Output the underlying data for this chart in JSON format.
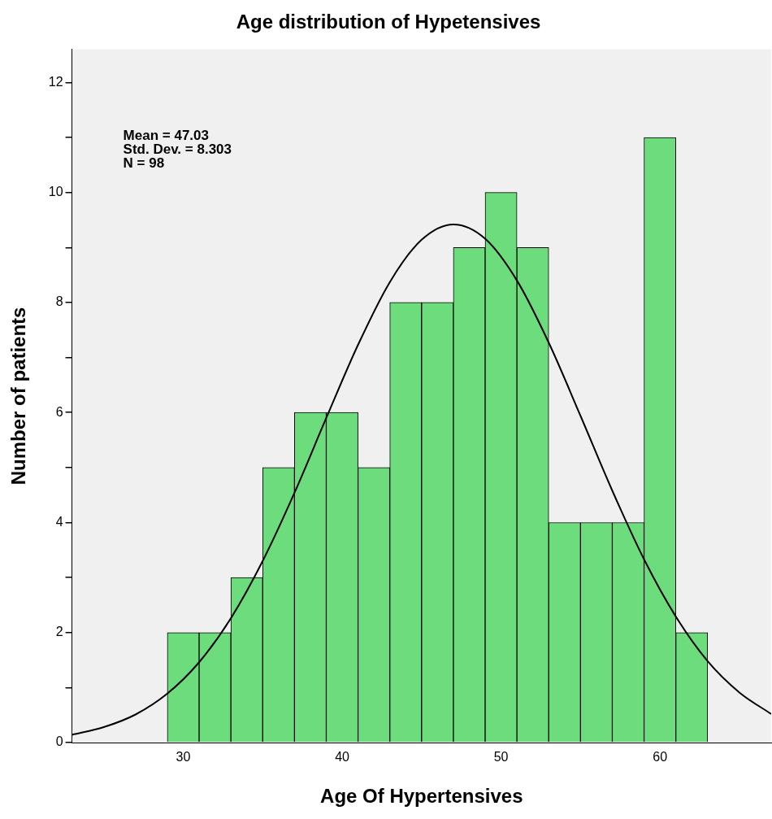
{
  "chart_data": {
    "type": "histogram",
    "title": "Age distribution of Hypetensives",
    "xlabel": "Age Of Hypertensives",
    "ylabel": "Number of patients",
    "xlim": [
      23,
      67
    ],
    "xticks": [
      30,
      40,
      50,
      60
    ],
    "ylim": [
      0,
      12.6
    ],
    "yticks": [
      0,
      {
        "value": 1,
        "label": null
      },
      2,
      {
        "value": 3,
        "label": null
      },
      4,
      {
        "value": 5,
        "label": null
      },
      6,
      {
        "value": 7,
        "label": null
      },
      8,
      {
        "value": 9,
        "label": null
      },
      10,
      {
        "value": 11,
        "label": null
      },
      12
    ],
    "grid": false,
    "legend": false,
    "annotations": [
      "Mean = 47.03",
      "Std. Dev. = 8.303",
      "N = 98"
    ],
    "series": [
      {
        "color": "#6cdc7c",
        "bins": [
          29,
          31,
          33,
          35,
          37,
          39,
          41,
          43,
          45,
          47,
          49,
          51,
          53,
          55,
          57,
          59,
          61,
          63
        ],
        "values": [
          2,
          2,
          3,
          5,
          6,
          6,
          5,
          8,
          8,
          9,
          10,
          9,
          4,
          4,
          4,
          11,
          2
        ]
      },
      {
        "type": "line",
        "color": "#000000",
        "marker": "none",
        "x": [
          23,
          25,
          27,
          29,
          31,
          33,
          35,
          37,
          39,
          41,
          43,
          45,
          47,
          49,
          51,
          53,
          55,
          57,
          59,
          61,
          63,
          65,
          67
        ],
        "values": [
          0.14,
          0.28,
          0.51,
          0.89,
          1.46,
          2.26,
          3.3,
          4.54,
          5.9,
          7.23,
          8.37,
          9.14,
          9.42,
          9.16,
          8.4,
          7.27,
          5.94,
          4.58,
          3.33,
          2.29,
          1.48,
          0.91,
          0.52
        ]
      }
    ]
  }
}
